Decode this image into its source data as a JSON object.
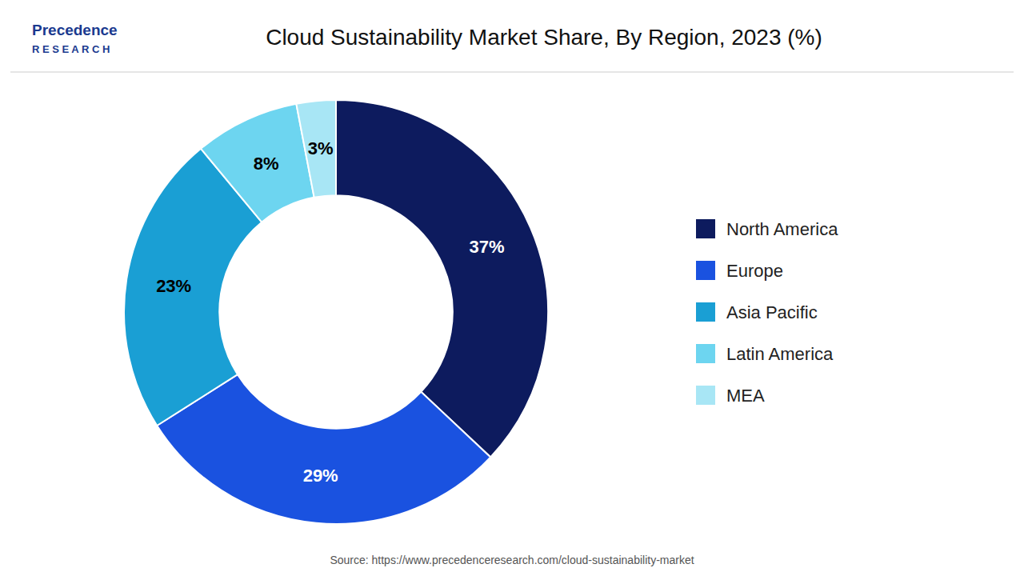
{
  "chart_data": {
    "type": "donut",
    "title": "Cloud Sustainability Market Share, By Region, 2023 (%)",
    "source": "Source: https://www.precedenceresearch.com/cloud-sustainability-market",
    "annotations": [
      "Precedence",
      "R E S E A R C H"
    ],
    "categories": [
      "North America",
      "Europe",
      "Asia Pacific",
      "Latin America",
      "MEA"
    ],
    "values": [
      37,
      29,
      23,
      8,
      3
    ],
    "value_labels": [
      "37%",
      "29%",
      "23%",
      "8%",
      "3%"
    ],
    "colors": [
      "#0d1b5e",
      "#1a52e0",
      "#1a9fd4",
      "#6dd5f0",
      "#a8e6f5"
    ],
    "data_labels": true,
    "legend": "right"
  }
}
